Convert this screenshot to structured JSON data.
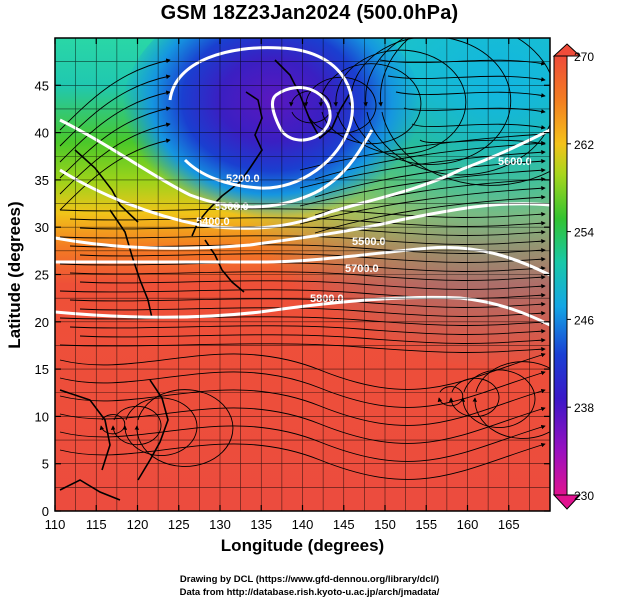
{
  "title": "GSM 18Z23Jan2024 (500.0hPa)",
  "x_axis": {
    "label": "Longitude (degrees)",
    "ticks": [
      "110",
      "115",
      "120",
      "125",
      "130",
      "135",
      "140",
      "145",
      "150",
      "155",
      "160",
      "165"
    ]
  },
  "y_axis": {
    "label": "Latitude  (degrees)",
    "ticks": [
      "0",
      "5",
      "10",
      "15",
      "20",
      "25",
      "30",
      "35",
      "40",
      "45"
    ]
  },
  "colorbar": {
    "labels": [
      "230",
      "238",
      "246",
      "254",
      "262",
      "270"
    ],
    "colors": [
      "#e0128f",
      "#7b10c8",
      "#1f2fd0",
      "#12a7e6",
      "#18c8a6",
      "#35c233",
      "#a6d61e",
      "#f4c21a",
      "#f37d21",
      "#ef4c3a"
    ]
  },
  "contours": [
    {
      "label": "5200.0"
    },
    {
      "label": "5300.0"
    },
    {
      "label": "5400.0"
    },
    {
      "label": "5500.0"
    },
    {
      "label": "5600.0"
    },
    {
      "label": "5700.0"
    },
    {
      "label": "5800.0"
    }
  ],
  "credits": {
    "line1": "Drawing by DCL (https://www.gfd-dennou.org/library/dcl/)",
    "line2": "Data from http://database.rish.kyoto-u.ac.jp/arch/jmadata/"
  }
}
